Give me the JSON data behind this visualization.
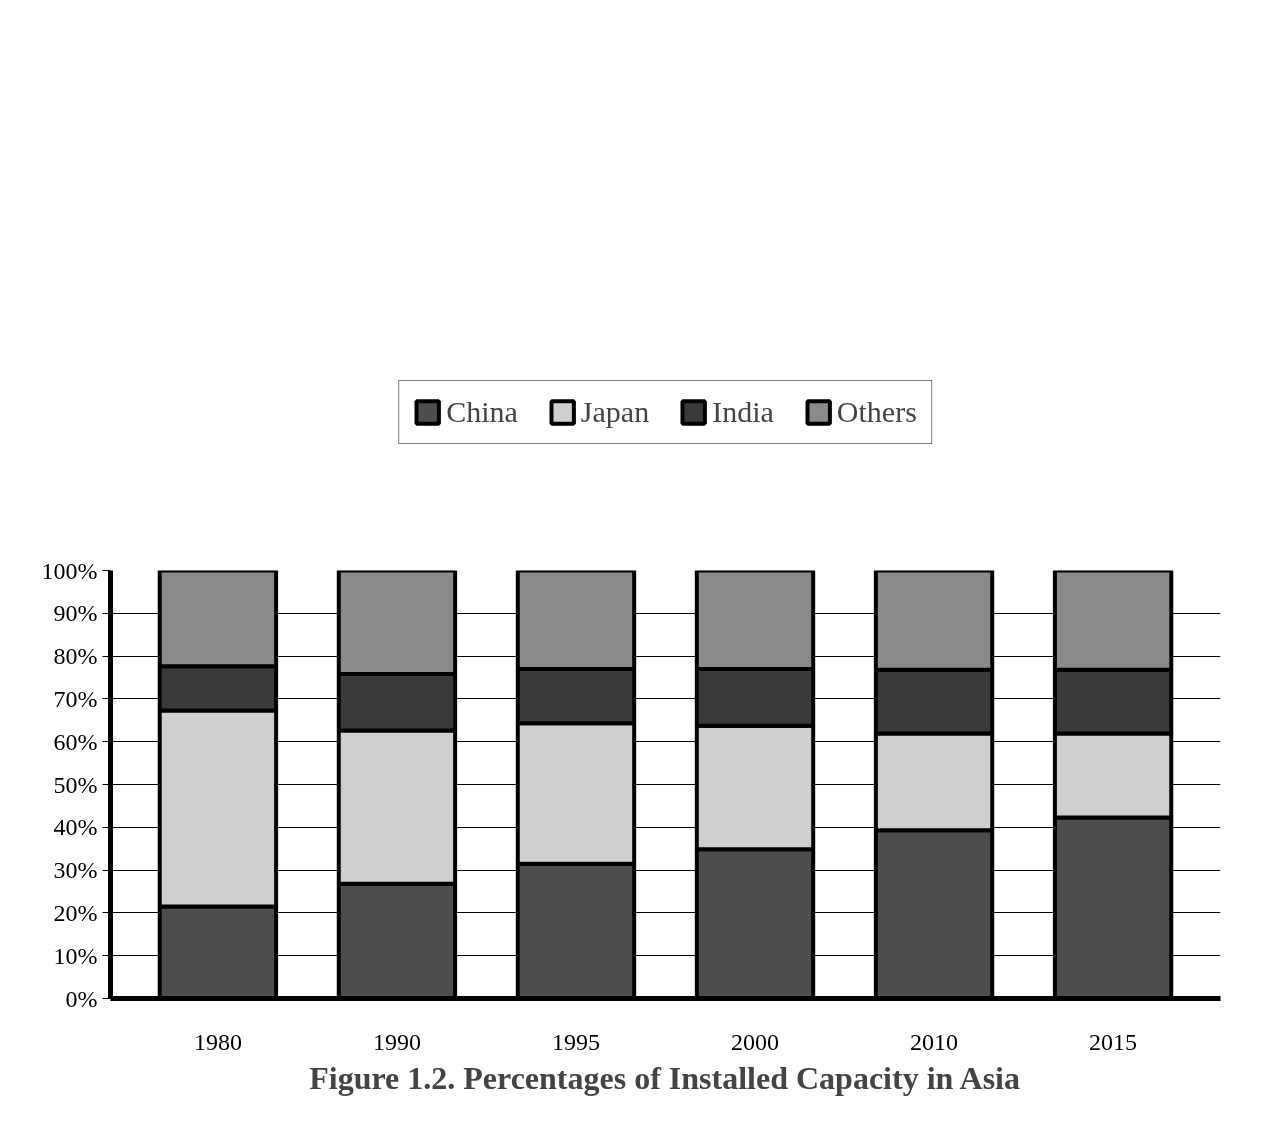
{
  "chart_data": {
    "type": "bar",
    "title": "Figure 1.2. Percentages of Installed Capacity in Asia",
    "categories": [
      "1980",
      "1990",
      "1995",
      "2000",
      "2010",
      "2015"
    ],
    "stacked": true,
    "series": [
      {
        "name": "China",
        "color": "#4d4d4d",
        "values": [
          21.5,
          26.8,
          31.5,
          34.9,
          39.3,
          42.3
        ]
      },
      {
        "name": "Japan",
        "color": "#cfcfcf",
        "values": [
          45.8,
          35.8,
          32.8,
          28.8,
          22.6,
          19.6
        ]
      },
      {
        "name": "India",
        "color": "#3a3a3a",
        "values": [
          10.3,
          13.2,
          12.7,
          13.3,
          14.9,
          14.9
        ]
      },
      {
        "name": "Others",
        "color": "#8a8a8a",
        "values": [
          22.4,
          24.2,
          23.0,
          23.0,
          23.2,
          23.2
        ]
      }
    ],
    "ylim": [
      0,
      100
    ],
    "yticks": [
      {
        "value": 0,
        "label": "0%"
      },
      {
        "value": 10,
        "label": "10%"
      },
      {
        "value": 20,
        "label": "20%"
      },
      {
        "value": 30,
        "label": "30%"
      },
      {
        "value": 40,
        "label": "40%"
      },
      {
        "value": 50,
        "label": "50%"
      },
      {
        "value": 60,
        "label": "60%"
      },
      {
        "value": 70,
        "label": "70%"
      },
      {
        "value": 80,
        "label": "80%"
      },
      {
        "value": 90,
        "label": "90%"
      },
      {
        "value": 100,
        "label": "100%"
      }
    ],
    "grid": "y",
    "legend": "top"
  }
}
